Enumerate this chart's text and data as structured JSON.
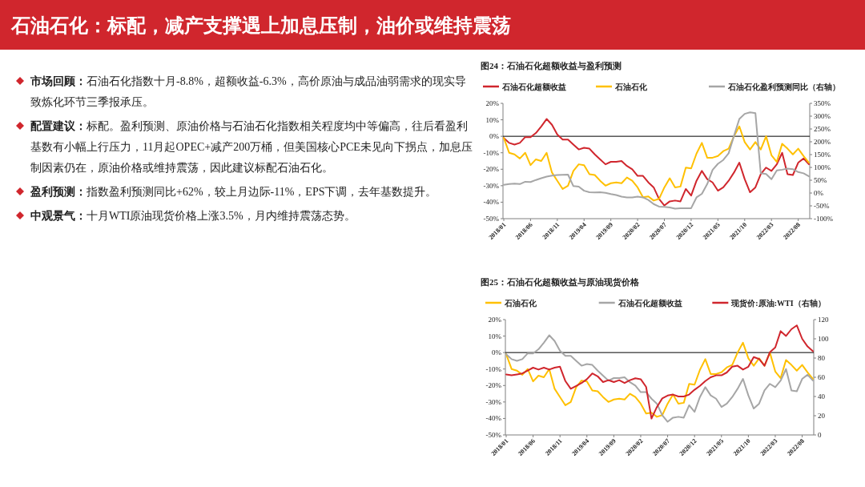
{
  "chart_data": [
    {
      "type": "other",
      "title": "石油石化：标配，减产支撑遇上加息压制，油价或维持震荡",
      "annotations": [
        "市场回顾：石油石化指数十月-8.8%，超额收益-6.3%，高价原油与成品油弱需求的现实导致炼化环节三季报承压。",
        "配置建议：标配。盈利预测、原油价格与石油石化指数相关程度均中等偏高，往后看盈利基数有小幅上行压力，11月起OPEC+减产200万桶，但美国核心PCE未见向下拐点，加息压制因素仍在，原油价格或维持震荡，因此建议标配石油石化。",
        "盈利预测：指数盈利预测同比+62%，较上月边际-11%，EPS下调，去年基数提升。",
        "中观景气：十月WTI原油现货价格上涨3.5%，月内维持震荡态势。"
      ]
    },
    {
      "type": "line",
      "title": "图24：石油石化超额收益与盈利预测",
      "legend": "top",
      "categories": [
        "2018/01",
        null,
        null,
        null,
        null,
        "2018/06",
        null,
        null,
        null,
        null,
        "2018/11",
        null,
        null,
        null,
        null,
        "2019/04",
        null,
        null,
        null,
        null,
        "2019/09",
        null,
        null,
        null,
        null,
        "2020/02",
        null,
        null,
        null,
        null,
        "2020/07",
        null,
        null,
        null,
        null,
        "2020/12",
        null,
        null,
        null,
        null,
        "2021/05",
        null,
        null,
        null,
        null,
        "2021/10",
        null,
        null,
        null,
        null,
        "2022/03",
        null,
        null,
        null,
        null,
        "2022/08",
        null,
        null
      ],
      "ylim": [
        -50,
        20
      ],
      "yticks": [
        {
          "value": 20,
          "label": "20%"
        },
        {
          "value": 10,
          "label": "10%"
        },
        {
          "value": 0,
          "label": "0%"
        },
        {
          "value": -10,
          "label": "-10%"
        },
        {
          "value": -20,
          "label": "-20%"
        },
        {
          "value": -30,
          "label": "-30%"
        },
        {
          "value": -40,
          "label": "-40%"
        },
        {
          "value": -50,
          "label": "-50%"
        }
      ],
      "y2lim": [
        -100,
        350
      ],
      "y2ticks": [
        {
          "value": 350,
          "label": "350%"
        },
        {
          "value": 300,
          "label": "300%"
        },
        {
          "value": 250,
          "label": "250%"
        },
        {
          "value": 200,
          "label": "200%"
        },
        {
          "value": 150,
          "label": "150%"
        },
        {
          "value": 100,
          "label": "100%"
        },
        {
          "value": 50,
          "label": "50%"
        },
        {
          "value": 0,
          "label": "0%"
        },
        {
          "value": -50,
          "label": "-50%"
        },
        {
          "value": -100,
          "label": "-100%"
        }
      ],
      "ref_lines": [
        {
          "axis": "y",
          "value": 0,
          "color": "#000000"
        }
      ],
      "series": [
        {
          "name": "石油石化超额收益",
          "color": "#d0262d",
          "values": [
            -1,
            -4,
            -5,
            -4,
            -0.5,
            -0.5,
            2,
            6,
            10.5,
            7,
            1,
            -2,
            -2,
            -5,
            -8,
            -7,
            -7.5,
            -11,
            -14,
            -17,
            -15.5,
            -15.5,
            -15,
            -18,
            -20,
            -24,
            -24,
            -28,
            -31,
            -38,
            -42,
            -39.5,
            -39,
            -39.5,
            -32,
            -36,
            -27,
            -21,
            -26,
            -28,
            -33,
            -31,
            -27,
            -22,
            -16,
            -26,
            -34,
            -31,
            -23,
            -19,
            -21,
            -17,
            -10,
            -23,
            -23.5,
            -16,
            -13.5,
            -17
          ]
        },
        {
          "name": "石油石化",
          "color": "#ffc000",
          "values": [
            -1,
            -10,
            -11,
            -13.5,
            -10,
            -17.5,
            -14,
            -15,
            -10,
            -22,
            -27,
            -32,
            -30,
            -21,
            -17,
            -17.5,
            -23,
            -23.5,
            -27,
            -30,
            -28.5,
            -28,
            -28.5,
            -25,
            -27,
            -31,
            -37,
            -36.5,
            -39,
            -38,
            -31,
            -25.5,
            -31,
            -30.5,
            -19,
            -19.5,
            -10.5,
            -4,
            -13,
            -13,
            -12,
            -9,
            -7.5,
            0,
            6,
            -3.5,
            -8,
            -3.5,
            -8,
            0,
            -11.5,
            -15.5,
            -4.5,
            -7.5,
            -11,
            -7.5,
            -12,
            -16
          ]
        },
        {
          "name": "石油石化盈利预测同比（右轴）",
          "color": "#a6a6a6",
          "axis": "y2",
          "values": [
            32,
            35,
            37,
            35,
            44,
            43,
            51,
            58,
            64,
            68,
            70,
            71,
            72,
            27,
            25,
            9,
            3,
            2,
            3,
            1,
            -4,
            -8,
            -14,
            -17,
            -17,
            -14,
            -17,
            -27,
            -43,
            -53,
            -54,
            -56,
            -61,
            -59,
            -59,
            -59,
            -17,
            -3,
            35,
            90,
            114,
            129,
            155,
            223,
            289,
            309,
            315,
            312,
            77,
            74,
            54,
            88,
            91,
            95,
            93,
            82,
            77,
            65
          ]
        }
      ]
    },
    {
      "type": "line",
      "title": "图25：石油石化超额收益与原油现货价格",
      "legend": "top",
      "categories": [
        "2018/01",
        null,
        null,
        null,
        null,
        "2018/06",
        null,
        null,
        null,
        null,
        "2018/11",
        null,
        null,
        null,
        null,
        "2019/04",
        null,
        null,
        null,
        null,
        "2019/09",
        null,
        null,
        null,
        null,
        "2020/02",
        null,
        null,
        null,
        null,
        "2020/07",
        null,
        null,
        null,
        null,
        "2020/12",
        null,
        null,
        null,
        null,
        "2021/05",
        null,
        null,
        null,
        null,
        "2021/10",
        null,
        null,
        null,
        null,
        "2022/03",
        null,
        null,
        null,
        null,
        "2022/08",
        null,
        null
      ],
      "ylim": [
        -50,
        20
      ],
      "yticks": [
        {
          "value": 20,
          "label": "20%"
        },
        {
          "value": 10,
          "label": "10%"
        },
        {
          "value": 0,
          "label": "0%"
        },
        {
          "value": -10,
          "label": "-10%"
        },
        {
          "value": -20,
          "label": "-20%"
        },
        {
          "value": -30,
          "label": "-30%"
        },
        {
          "value": -40,
          "label": "-40%"
        },
        {
          "value": -50,
          "label": "-50%"
        }
      ],
      "y2lim": [
        0,
        120
      ],
      "y2ticks": [
        0,
        20,
        40,
        60,
        80,
        100,
        120
      ],
      "ref_lines": [
        {
          "axis": "y",
          "value": 0,
          "color": "#000000"
        }
      ],
      "series": [
        {
          "name": "石油石化",
          "color": "#ffc000",
          "values": [
            -1,
            -10,
            -11,
            -13.5,
            -10,
            -17.5,
            -14,
            -15,
            -10,
            -22,
            -27,
            -32,
            -30,
            -21,
            -17,
            -17.5,
            -23,
            -23.5,
            -27,
            -30,
            -28.5,
            -28,
            -28.5,
            -25,
            -27,
            -31,
            -37,
            -36.5,
            -39,
            -38,
            -31,
            -25.5,
            -31,
            -30.5,
            -19,
            -19.5,
            -10.5,
            -4,
            -13,
            -13,
            -12,
            -9,
            -7.5,
            0,
            6,
            -3.5,
            -8,
            -3.5,
            -8,
            0,
            -11.5,
            -15.5,
            -4.5,
            -7.5,
            -11,
            -7.5,
            -12,
            -16
          ]
        },
        {
          "name": "石油石化超额收益",
          "color": "#a6a6a6",
          "values": [
            -1,
            -4,
            -5,
            -4,
            -0.5,
            -0.5,
            2,
            6,
            10.5,
            7,
            1,
            -2,
            -2,
            -5,
            -8,
            -7,
            -7.5,
            -11,
            -14,
            -17,
            -15.5,
            -15.5,
            -15,
            -18,
            -20,
            -24,
            -24,
            -28,
            -31,
            -38,
            -42,
            -39.5,
            -39,
            -39.5,
            -32,
            -36,
            -27,
            -21,
            -26,
            -28,
            -33,
            -31,
            -27,
            -22,
            -16,
            -26,
            -34,
            -31,
            -23,
            -19,
            -21,
            -17,
            -10,
            -23,
            -23.5,
            -16,
            -13.5,
            -17
          ]
        },
        {
          "name": "现货价:原油:WTI（右轴）",
          "color": "#d0262d",
          "axis": "y2",
          "values": [
            63,
            62,
            63,
            64,
            67,
            70,
            68,
            70,
            68,
            70,
            71,
            56,
            48,
            51,
            54,
            58,
            64,
            61,
            55,
            57,
            55,
            57,
            54,
            57,
            59,
            58,
            50,
            17,
            29,
            38,
            41,
            42,
            40,
            40,
            42,
            47,
            51,
            56,
            60,
            62,
            62,
            65,
            71,
            72,
            68,
            71,
            81,
            79,
            72,
            86,
            91,
            108,
            103,
            110,
            114,
            100,
            92,
            87
          ]
        }
      ]
    }
  ]
}
